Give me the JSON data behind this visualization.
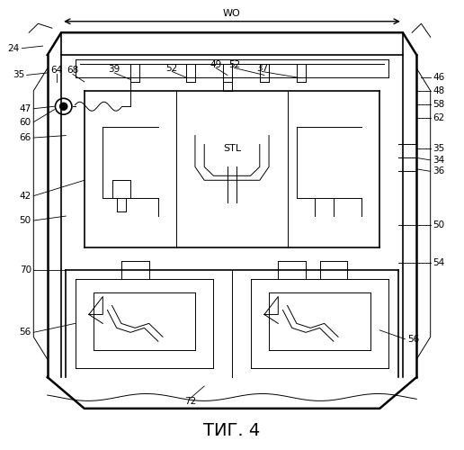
{
  "title": "ΤИГ. 4",
  "background_color": "#ffffff",
  "line_color": "#000000",
  "label_color": "#000000",
  "fig_width": 5.16,
  "fig_height": 5.0,
  "dpi": 100
}
